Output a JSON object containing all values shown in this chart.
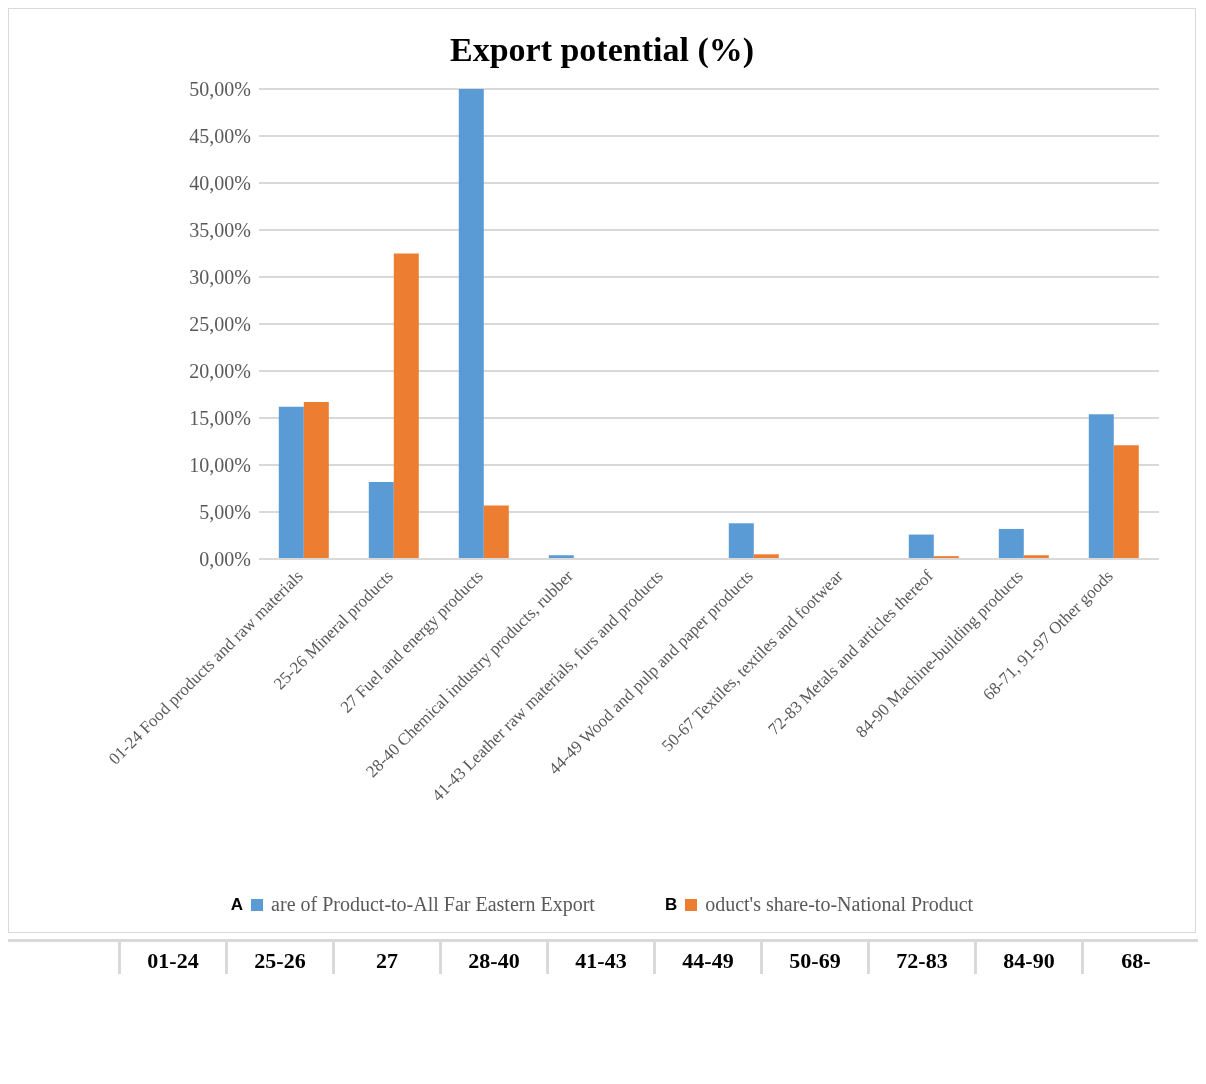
{
  "chart_data": {
    "type": "bar",
    "title": "Export potential (%)",
    "categories": [
      "01-24 Food products and raw materials",
      "25-26 Mineral products",
      "27 Fuel and energy products",
      "28-40 Chemical industry products, rubber",
      "41-43 Leather raw materials, furs and products",
      "44-49 Wood and pulp and paper products",
      "50-67 Textiles, textiles and footwear",
      "72-83 Metals and articles thereof",
      "84-90 Machine-building products",
      "68-71, 91-97 Other goods"
    ],
    "series": [
      {
        "name": "are of Product-to-All Far Eastern Export",
        "color": "#5b9bd5",
        "values": [
          16.2,
          8.2,
          50,
          0.4,
          0,
          3.8,
          0,
          2.6,
          3.2,
          15.4
        ]
      },
      {
        "name": "oduct's share-to-National Product",
        "color": "#ed7d31",
        "values": [
          16.7,
          32.5,
          5.7,
          0,
          0,
          0.5,
          0,
          0.3,
          0.4,
          12.1
        ]
      }
    ],
    "ylim": [
      0,
      50
    ],
    "yticks": [
      {
        "value": 0,
        "label": "0,00%"
      },
      {
        "value": 5,
        "label": "5,00%"
      },
      {
        "value": 10,
        "label": "10,00%"
      },
      {
        "value": 15,
        "label": "15,00%"
      },
      {
        "value": 20,
        "label": "20,00%"
      },
      {
        "value": 25,
        "label": "25,00%"
      },
      {
        "value": 30,
        "label": "30,00%"
      },
      {
        "value": 35,
        "label": "35,00%"
      },
      {
        "value": 40,
        "label": "40,00%"
      },
      {
        "value": 45,
        "label": "45,00%"
      },
      {
        "value": 50,
        "label": "50,00%"
      }
    ],
    "grid": "y",
    "legend": "bottom",
    "annotations": [
      "A",
      "B",
      "01-24",
      "25-26",
      "27",
      "28-40",
      "41-43",
      "44-49",
      "50-69",
      "72-83",
      "84-90",
      "68-"
    ]
  }
}
